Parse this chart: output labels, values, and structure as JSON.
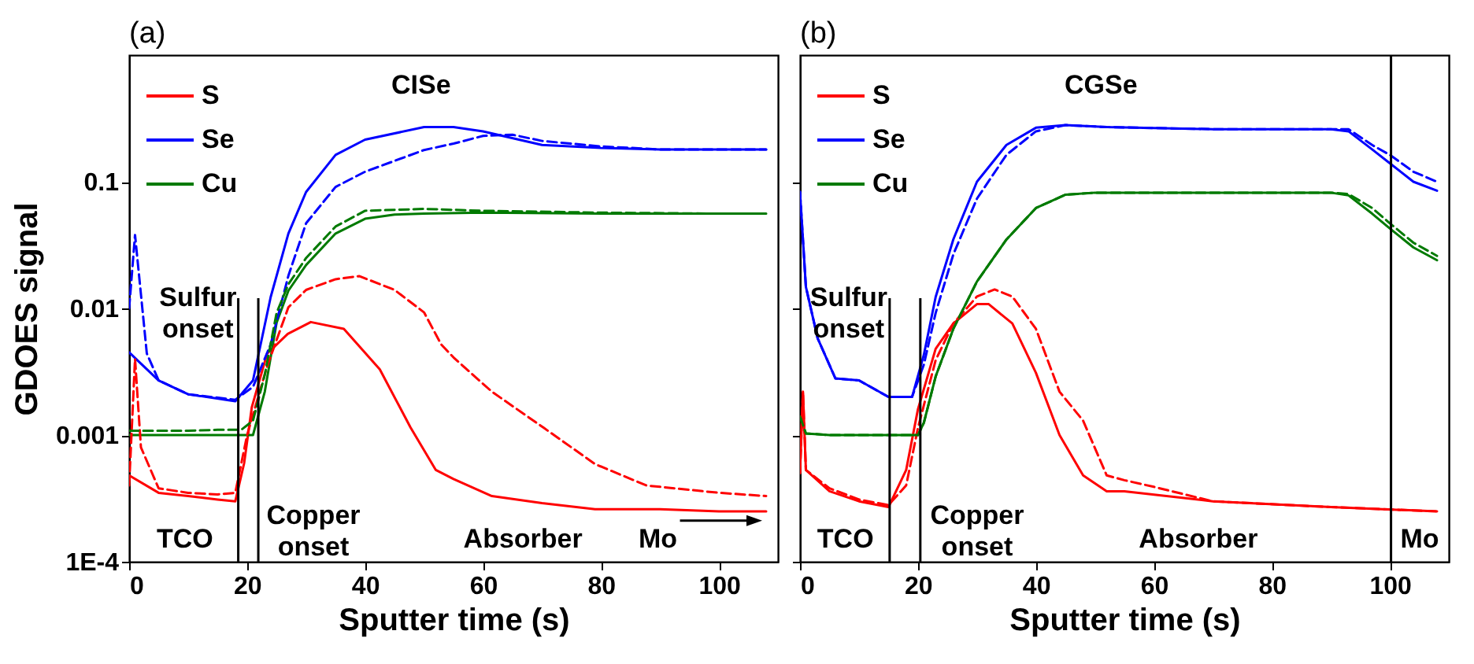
{
  "chart_data": [
    {
      "type": "line",
      "title": "(a)",
      "xlabel": "Sputter time (s)",
      "ylabel": "GDOES signal",
      "log": "y",
      "grid": false,
      "legend": "top left",
      "xlim": [
        0,
        110
      ],
      "ylim": [
        0.0001,
        1
      ],
      "xticks": [
        0,
        20,
        40,
        60,
        80,
        100
      ],
      "yticks": [
        {
          "value": 0.0001,
          "label": "1E-4"
        },
        0.001,
        0.01,
        0.1
      ],
      "series": [
        {
          "name": "S",
          "color": "#ff0000",
          "x": [
            0,
            5,
            10,
            15,
            18,
            19.5,
            20.8,
            23.4,
            26.9,
            30.8,
            36.4,
            42.5,
            47.7,
            52,
            55,
            61.5,
            70,
            79,
            90,
            100,
            108
          ],
          "values": [
            0.00048,
            0.00035,
            0.00033,
            0.00031,
            0.0003,
            0.0006,
            0.00166,
            0.0044,
            0.0063,
            0.0078,
            0.0069,
            0.0033,
            0.00115,
            0.00053,
            0.00045,
            0.00033,
            0.00029,
            0.00026,
            0.00026,
            0.00025,
            0.00025
          ]
        },
        {
          "name": "Se",
          "color": "#0000ff",
          "x": [
            0,
            5,
            10,
            18,
            21,
            24,
            27,
            30,
            35,
            40,
            50,
            55,
            60,
            70,
            80,
            90,
            100,
            108
          ],
          "values": [
            0.0045,
            0.0027,
            0.0021,
            0.00185,
            0.0027,
            0.0123,
            0.039,
            0.083,
            0.163,
            0.215,
            0.27,
            0.27,
            0.25,
            0.195,
            0.185,
            0.18,
            0.18,
            0.18
          ]
        },
        {
          "name": "Cu",
          "color": "#007a00",
          "x": [
            0,
            5,
            10,
            15,
            21,
            23,
            25,
            27,
            30,
            35,
            40,
            45,
            50,
            60,
            80,
            100,
            108
          ],
          "values": [
            0.001,
            0.001,
            0.001,
            0.001,
            0.001,
            0.0022,
            0.0077,
            0.0138,
            0.022,
            0.039,
            0.051,
            0.055,
            0.056,
            0.057,
            0.056,
            0.056,
            0.056
          ]
        },
        {
          "color": "#ff0000",
          "line_style": "dashed",
          "x": [
            0,
            1,
            2,
            5,
            10,
            15,
            18,
            20,
            23.4,
            27,
            30,
            35,
            39,
            45,
            50,
            52.9,
            55,
            61.5,
            70.3,
            79,
            87.7,
            100,
            108
          ],
          "values": [
            0.0004,
            0.004,
            0.0008,
            0.00038,
            0.00035,
            0.00034,
            0.00035,
            0.001,
            0.0035,
            0.0102,
            0.014,
            0.017,
            0.018,
            0.014,
            0.0093,
            0.0052,
            0.0041,
            0.0022,
            0.00114,
            0.00059,
            0.0004,
            0.00035,
            0.00033
          ]
        },
        {
          "color": "#0000ff",
          "line_style": "dashed",
          "x": [
            0,
            1,
            3,
            5,
            10,
            18,
            21,
            24,
            27,
            30,
            35,
            40,
            50,
            55,
            60,
            65,
            70,
            80,
            90,
            100,
            108
          ],
          "values": [
            0.01,
            0.038,
            0.0044,
            0.0027,
            0.0021,
            0.0019,
            0.0024,
            0.0052,
            0.0181,
            0.047,
            0.091,
            0.12,
            0.178,
            0.2,
            0.23,
            0.235,
            0.21,
            0.19,
            0.18,
            0.18,
            0.18
          ]
        },
        {
          "color": "#007a00",
          "line_style": "dashed",
          "x": [
            0,
            5,
            10,
            15,
            19,
            21,
            23,
            25,
            27,
            30,
            35,
            40,
            50,
            60,
            80,
            100,
            108
          ],
          "values": [
            0.00108,
            0.00108,
            0.00108,
            0.0011,
            0.0011,
            0.0013,
            0.003,
            0.0092,
            0.0155,
            0.025,
            0.0443,
            0.059,
            0.061,
            0.059,
            0.057,
            0.056,
            0.056
          ]
        }
      ],
      "ref_lines": [
        {
          "axis": "x",
          "value": 18.5,
          "color": "#000000"
        },
        {
          "axis": "x",
          "value": 21.9,
          "color": "#000000"
        }
      ],
      "annotations": [
        "CISe",
        "Sulfur\nonset",
        "Copper\nonset",
        "TCO",
        "Absorber",
        "Mo"
      ]
    },
    {
      "type": "line",
      "title": "(b)",
      "xlabel": "Sputter time (s)",
      "log": "y",
      "grid": false,
      "legend": "top left",
      "tick_labels": "x",
      "xlim": [
        0,
        110
      ],
      "ylim": [
        0.0001,
        1
      ],
      "xticks": [
        0,
        20,
        40,
        60,
        80,
        100
      ],
      "yticks": [
        0.0001,
        0.001,
        0.01,
        0.1
      ],
      "series": [
        {
          "name": "S",
          "color": "#ff0000",
          "x": [
            0,
            0.5,
            1,
            5,
            10,
            15,
            18,
            20,
            23,
            26,
            30,
            32,
            36,
            40,
            44,
            48,
            52,
            55,
            70,
            90,
            108
          ],
          "values": [
            0.0005,
            0.0022,
            0.00053,
            0.00036,
            0.0003,
            0.00027,
            0.00053,
            0.0016,
            0.0048,
            0.0076,
            0.0108,
            0.0108,
            0.0076,
            0.0031,
            0.001,
            0.00048,
            0.00036,
            0.00036,
            0.0003,
            0.00027,
            0.00025
          ]
        },
        {
          "name": "Se",
          "color": "#0000ff",
          "x": [
            0,
            1,
            3,
            6,
            10,
            15,
            19,
            21,
            23,
            26,
            30,
            35,
            40,
            45,
            52,
            70,
            90,
            93,
            97,
            100,
            104,
            108
          ],
          "values": [
            0.083,
            0.0148,
            0.0058,
            0.0028,
            0.0027,
            0.002,
            0.002,
            0.0043,
            0.0123,
            0.0351,
            0.1,
            0.195,
            0.267,
            0.28,
            0.27,
            0.26,
            0.26,
            0.25,
            0.18,
            0.14,
            0.1,
            0.085
          ]
        },
        {
          "name": "Cu",
          "color": "#007a00",
          "x": [
            0,
            1,
            5,
            10,
            15,
            20,
            21,
            23,
            26,
            30,
            35,
            40,
            45,
            50,
            70,
            90,
            93,
            97,
            100,
            104,
            108
          ],
          "values": [
            0.0014,
            0.00103,
            0.001,
            0.001,
            0.001,
            0.001,
            0.00125,
            0.0029,
            0.0069,
            0.0163,
            0.035,
            0.062,
            0.079,
            0.082,
            0.082,
            0.082,
            0.078,
            0.056,
            0.0428,
            0.0303,
            0.024
          ]
        },
        {
          "color": "#ff0000",
          "line_style": "dashed",
          "x": [
            0,
            0.5,
            1,
            5,
            10,
            15,
            18,
            20,
            23,
            26,
            30,
            33,
            36,
            40,
            44,
            48,
            52,
            55,
            60,
            70,
            90,
            108
          ],
          "values": [
            0.0005,
            0.0022,
            0.00053,
            0.00038,
            0.00031,
            0.00028,
            0.0004,
            0.00114,
            0.0039,
            0.0076,
            0.0124,
            0.0141,
            0.0124,
            0.0069,
            0.0022,
            0.0013,
            0.00048,
            0.00044,
            0.00039,
            0.0003,
            0.00027,
            0.00025
          ]
        },
        {
          "color": "#0000ff",
          "line_style": "dashed",
          "x": [
            0,
            1,
            3,
            6,
            10,
            15,
            19,
            21,
            23,
            26,
            30,
            35,
            40,
            45,
            52,
            70,
            90,
            93,
            97,
            100,
            104,
            108
          ],
          "values": [
            0.083,
            0.0148,
            0.0058,
            0.0028,
            0.0027,
            0.002,
            0.002,
            0.0036,
            0.0092,
            0.0267,
            0.0735,
            0.163,
            0.25,
            0.28,
            0.27,
            0.26,
            0.26,
            0.26,
            0.195,
            0.163,
            0.12,
            0.1
          ]
        },
        {
          "color": "#007a00",
          "line_style": "dashed",
          "x": [
            0,
            1,
            5,
            10,
            15,
            20,
            21,
            23,
            26,
            30,
            35,
            40,
            45,
            50,
            70,
            90,
            93,
            97,
            100,
            104,
            108
          ],
          "values": [
            0.0014,
            0.00103,
            0.001,
            0.001,
            0.001,
            0.001,
            0.00125,
            0.0029,
            0.0069,
            0.0163,
            0.035,
            0.062,
            0.079,
            0.082,
            0.082,
            0.082,
            0.08,
            0.062,
            0.047,
            0.033,
            0.026
          ]
        }
      ],
      "ref_lines": [
        {
          "axis": "x",
          "value": 15.2,
          "color": "#000000"
        },
        {
          "axis": "x",
          "value": 20.4,
          "color": "#000000"
        },
        {
          "axis": "x",
          "value": 100.2,
          "color": "#000000"
        }
      ],
      "annotations": [
        "CGSe",
        "Sulfur\nonset",
        "Copper\nonset",
        "TCO",
        "Absorber",
        "Mo"
      ]
    }
  ]
}
